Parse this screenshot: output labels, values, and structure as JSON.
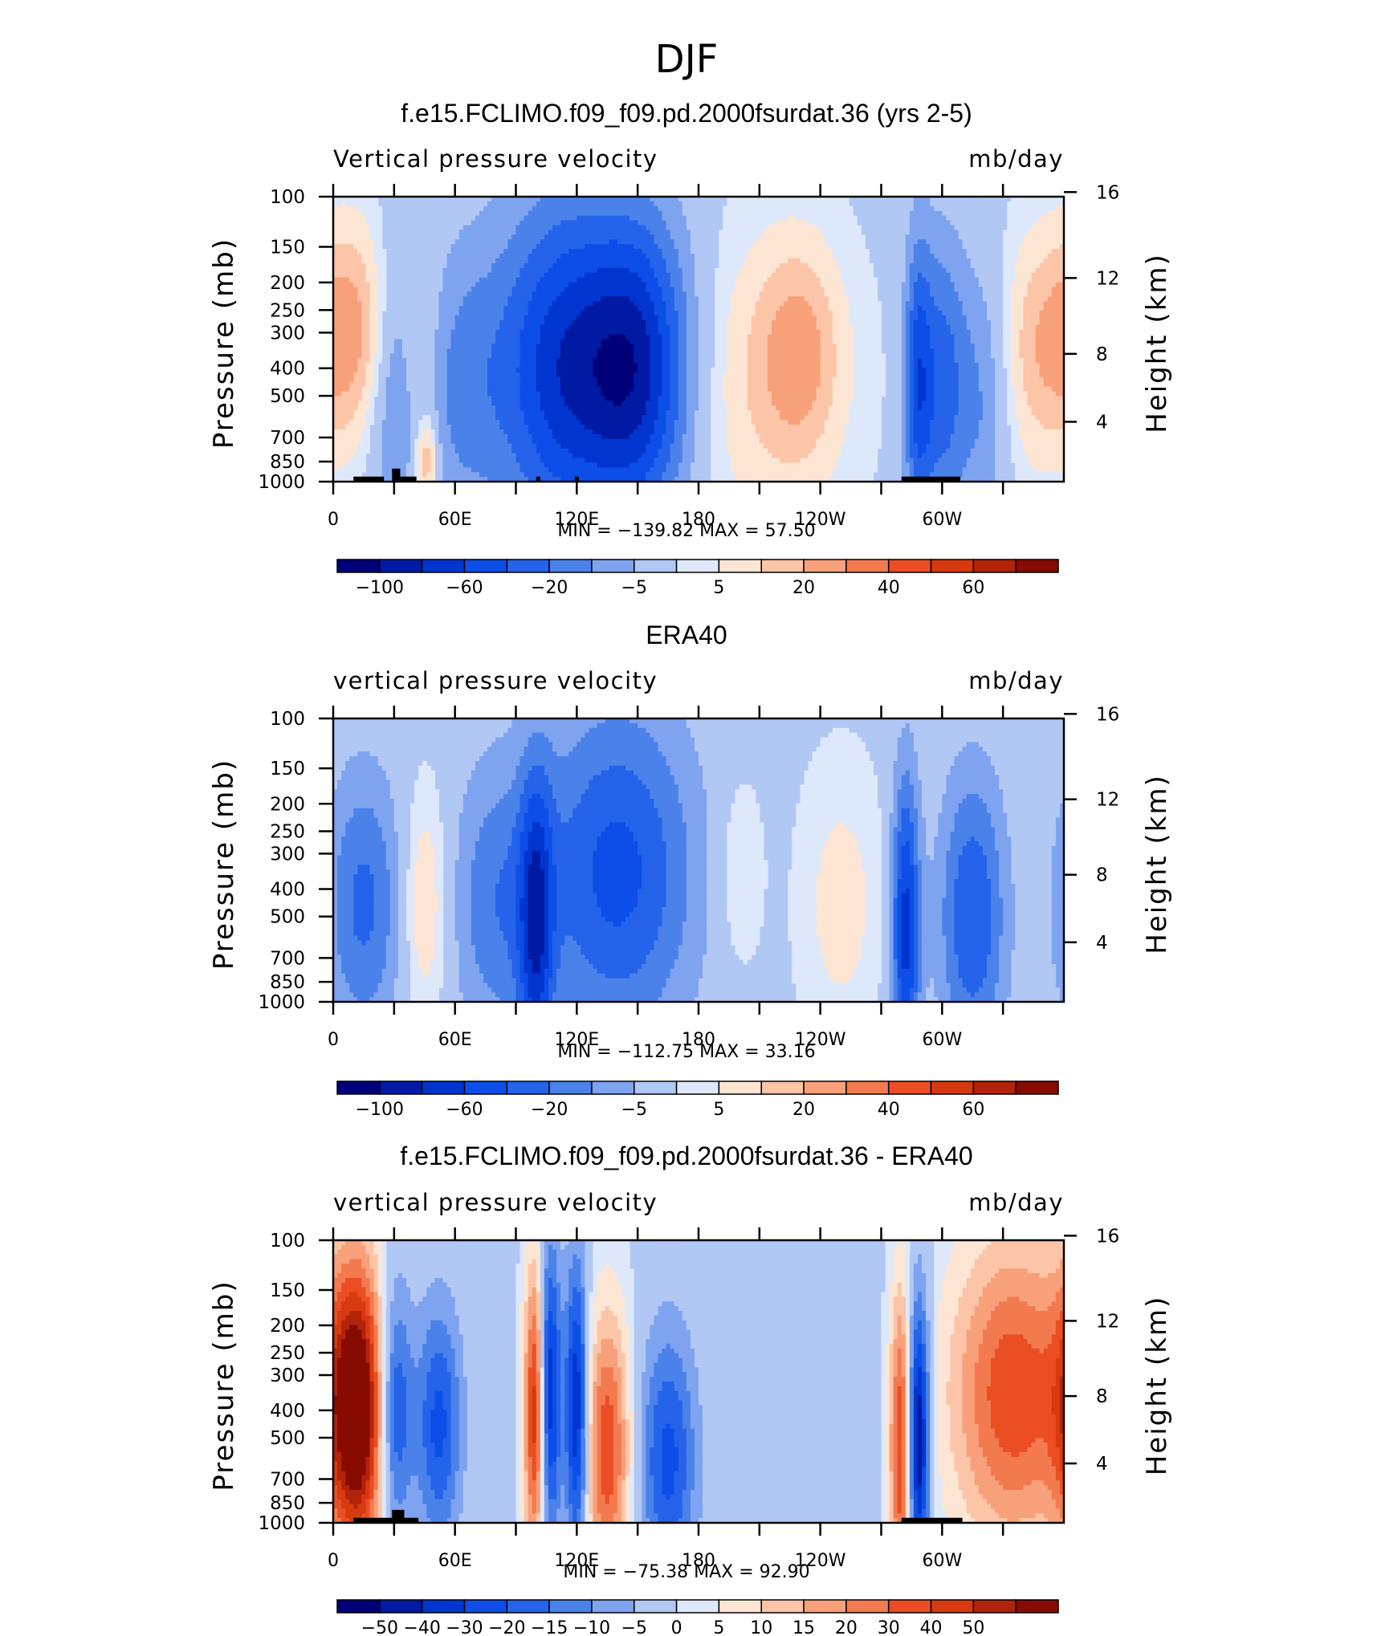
{
  "figure_title": "DJF",
  "chart_data": [
    {
      "type": "heatmap",
      "title": "f.e15.FCLIMO.f09_f09.pd.2000fsurdat.36 (yrs 2-5)",
      "left_string": "Vertical pressure velocity",
      "right_string": "mb/day",
      "ylabel": "Pressure (mb)",
      "ylabel_right": "Height (km)",
      "x_ticks": [
        "0",
        "60E",
        "120E",
        "180",
        "120W",
        "60W"
      ],
      "y_ticks": [
        "100",
        "150",
        "200",
        "250",
        "300",
        "400",
        "500",
        "700",
        "850",
        "1000"
      ],
      "y_right_ticks": [
        "16",
        "12",
        "8",
        "4"
      ],
      "stats": "MIN = −139.82   MAX =   57.50",
      "min": -139.82,
      "max": 57.5,
      "colorbar": {
        "labels": [
          "−100",
          "−60",
          "−20",
          "−5",
          "5",
          "20",
          "40",
          "60"
        ],
        "colors": [
          "#000078",
          "#001aa4",
          "#0036cf",
          "#0d4ee8",
          "#2463ea",
          "#4a82ea",
          "#7ea3ef",
          "#b1c7f4",
          "#dde8fb",
          "#fde5d3",
          "#fcc5a7",
          "#f8a07a",
          "#f37a4f",
          "#ec4e24",
          "#d83a10",
          "#b2230a",
          "#870b00"
        ]
      },
      "features": [
        {
          "lon": 22,
          "p": 300,
          "w": 18,
          "h": 1.4,
          "v": 25
        },
        {
          "lon": 8,
          "p": 300,
          "w": 14,
          "h": 1.2,
          "v": 30
        },
        {
          "lon": 30,
          "p": 400,
          "w": 10,
          "h": 1.6,
          "v": -45
        },
        {
          "lon": 42,
          "p": 350,
          "w": 6,
          "h": 1.3,
          "v": 20
        },
        {
          "lon": 46,
          "p": 850,
          "w": 4,
          "h": 0.5,
          "v": 45
        },
        {
          "lon": 62,
          "p": 450,
          "w": 16,
          "h": 1.7,
          "v": -30
        },
        {
          "lon": 110,
          "p": 400,
          "w": 22,
          "h": 2.0,
          "v": -70
        },
        {
          "lon": 150,
          "p": 400,
          "w": 20,
          "h": 1.8,
          "v": -85
        },
        {
          "lon": 210,
          "p": 450,
          "w": 30,
          "h": 1.8,
          "v": 25
        },
        {
          "lon": 230,
          "p": 350,
          "w": 14,
          "h": 1.2,
          "v": 35
        },
        {
          "lon": 288,
          "p": 450,
          "w": 5,
          "h": 1.7,
          "v": -55
        },
        {
          "lon": 300,
          "p": 450,
          "w": 8,
          "h": 1.7,
          "v": -45
        },
        {
          "lon": 320,
          "p": 500,
          "w": 10,
          "h": 1.6,
          "v": -30
        },
        {
          "lon": 345,
          "p": 350,
          "w": 14,
          "h": 1.4,
          "v": 30
        }
      ],
      "topography": [
        [
          10,
          25,
          960
        ],
        [
          29,
          33,
          900
        ],
        [
          33,
          41,
          960
        ],
        [
          100,
          102,
          960
        ],
        [
          119,
          121,
          960
        ],
        [
          280,
          309,
          960
        ]
      ]
    },
    {
      "type": "heatmap",
      "title": "ERA40",
      "left_string": "vertical pressure velocity",
      "right_string": "mb/day",
      "ylabel": "Pressure (mb)",
      "ylabel_right": "Height (km)",
      "x_ticks": [
        "0",
        "60E",
        "120E",
        "180",
        "120W",
        "60W"
      ],
      "y_ticks": [
        "100",
        "150",
        "200",
        "250",
        "300",
        "400",
        "500",
        "700",
        "850",
        "1000"
      ],
      "y_right_ticks": [
        "16",
        "12",
        "8",
        "4"
      ],
      "stats": "MIN = −112.75   MAX =   33.16",
      "min": -112.75,
      "max": 33.16,
      "colorbar": {
        "labels": [
          "−100",
          "−60",
          "−20",
          "−5",
          "5",
          "20",
          "40",
          "60"
        ],
        "colors": [
          "#000078",
          "#001aa4",
          "#0036cf",
          "#0d4ee8",
          "#2463ea",
          "#4a82ea",
          "#7ea3ef",
          "#b1c7f4",
          "#dde8fb",
          "#fde5d3",
          "#fcc5a7",
          "#f8a07a",
          "#f37a4f",
          "#ec4e24",
          "#d83a10",
          "#b2230a",
          "#870b00"
        ]
      },
      "features": [
        {
          "lon": 15,
          "p": 450,
          "w": 14,
          "h": 1.6,
          "v": -45
        },
        {
          "lon": 45,
          "p": 450,
          "w": 8,
          "h": 1.3,
          "v": 30
        },
        {
          "lon": 80,
          "p": 450,
          "w": 16,
          "h": 1.7,
          "v": -35
        },
        {
          "lon": 100,
          "p": 550,
          "w": 6,
          "h": 1.8,
          "v": -60
        },
        {
          "lon": 140,
          "p": 350,
          "w": 28,
          "h": 2.0,
          "v": -60
        },
        {
          "lon": 200,
          "p": 350,
          "w": 8,
          "h": 1.1,
          "v": 18
        },
        {
          "lon": 250,
          "p": 450,
          "w": 14,
          "h": 1.5,
          "v": 20
        },
        {
          "lon": 282,
          "p": 550,
          "w": 5,
          "h": 1.8,
          "v": -75
        },
        {
          "lon": 315,
          "p": 500,
          "w": 12,
          "h": 1.7,
          "v": -55
        }
      ],
      "topography": []
    },
    {
      "type": "heatmap",
      "title": "f.e15.FCLIMO.f09_f09.pd.2000fsurdat.36 - ERA40",
      "left_string": "vertical pressure velocity",
      "right_string": "mb/day",
      "ylabel": "Pressure (mb)",
      "ylabel_right": "Height (km)",
      "x_ticks": [
        "0",
        "60E",
        "120E",
        "180",
        "120W",
        "60W"
      ],
      "y_ticks": [
        "100",
        "150",
        "200",
        "250",
        "300",
        "400",
        "500",
        "700",
        "850",
        "1000"
      ],
      "y_right_ticks": [
        "16",
        "12",
        "8",
        "4"
      ],
      "stats": "MIN = −75.38   MAX =   92.90",
      "min": -75.38,
      "max": 92.9,
      "colorbar": {
        "labels": [
          "−50",
          "−40",
          "−30",
          "−20",
          "−15",
          "−10",
          "−5",
          "0",
          "5",
          "10",
          "15",
          "20",
          "30",
          "40",
          "50"
        ],
        "colors": [
          "#000078",
          "#001aa4",
          "#0036cf",
          "#0d4ee8",
          "#2463ea",
          "#4a82ea",
          "#7ea3ef",
          "#b1c7f4",
          "#dde8fb",
          "#fde5d3",
          "#fcc5a7",
          "#f8a07a",
          "#f37a4f",
          "#ec4e24",
          "#d83a10",
          "#b2230a",
          "#870b00"
        ]
      },
      "features": [
        {
          "lon": 12,
          "p": 400,
          "w": 10,
          "h": 1.7,
          "v": 65
        },
        {
          "lon": 30,
          "p": 400,
          "w": 6,
          "h": 1.5,
          "v": -35
        },
        {
          "lon": 52,
          "p": 450,
          "w": 8,
          "h": 1.4,
          "v": -30
        },
        {
          "lon": 100,
          "p": 400,
          "w": 4,
          "h": 1.7,
          "v": 55
        },
        {
          "lon": 106,
          "p": 350,
          "w": 4,
          "h": 1.7,
          "v": -50
        },
        {
          "lon": 120,
          "p": 400,
          "w": 4,
          "h": 1.7,
          "v": -45
        },
        {
          "lon": 135,
          "p": 550,
          "w": 8,
          "h": 1.6,
          "v": 40
        },
        {
          "lon": 165,
          "p": 600,
          "w": 10,
          "h": 1.5,
          "v": -30
        },
        {
          "lon": 280,
          "p": 550,
          "w": 4,
          "h": 1.8,
          "v": 45
        },
        {
          "lon": 288,
          "p": 500,
          "w": 4,
          "h": 1.6,
          "v": -55
        },
        {
          "lon": 335,
          "p": 350,
          "w": 22,
          "h": 1.8,
          "v": 40
        }
      ],
      "topography": [
        [
          10,
          29,
          960
        ],
        [
          29,
          35,
          900
        ],
        [
          35,
          42,
          960
        ],
        [
          280,
          310,
          960
        ]
      ]
    }
  ]
}
